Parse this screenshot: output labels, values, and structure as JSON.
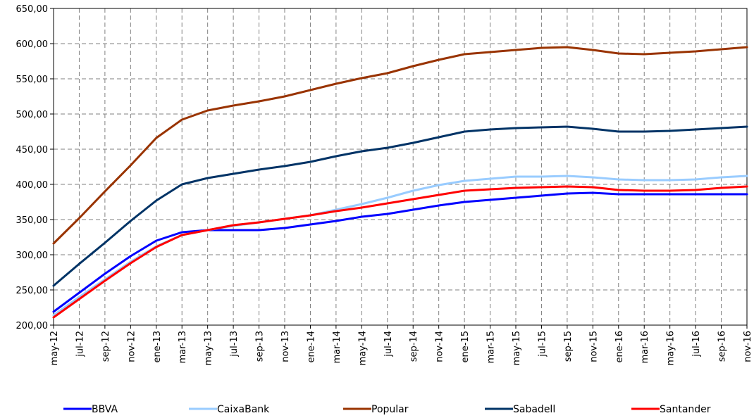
{
  "chart_data": {
    "type": "line",
    "title": "",
    "xlabel": "",
    "ylabel": "",
    "ylim": [
      200,
      650
    ],
    "yticks": [
      "200,00",
      "250,00",
      "300,00",
      "350,00",
      "400,00",
      "450,00",
      "500,00",
      "550,00",
      "600,00",
      "650,00"
    ],
    "ytick_values": [
      200,
      250,
      300,
      350,
      400,
      450,
      500,
      550,
      600,
      650
    ],
    "grid": true,
    "legend_position": "bottom",
    "categories": [
      "may-12",
      "jul-12",
      "sep-12",
      "nov-12",
      "ene-13",
      "mar-13",
      "may-13",
      "jul-13",
      "sep-13",
      "nov-13",
      "ene-14",
      "mar-14",
      "may-14",
      "jul-14",
      "sep-14",
      "nov-14",
      "ene-15",
      "mar-15",
      "may-15",
      "jul-15",
      "sep-15",
      "nov-15",
      "ene-16",
      "mar-16",
      "may-16",
      "jul-16",
      "sep-16",
      "nov-16"
    ],
    "series": [
      {
        "name": "BBVA",
        "color": "#0000ff",
        "values": [
          219,
          246,
          273,
          298,
          320,
          332,
          335,
          335,
          335,
          338,
          343,
          348,
          354,
          358,
          364,
          370,
          375,
          378,
          381,
          384,
          387,
          388,
          386,
          386,
          386,
          386,
          386,
          386
        ]
      },
      {
        "name": "CaixaBank",
        "color": "#99ccff",
        "values": [
          214,
          240,
          265,
          290,
          312,
          328,
          335,
          341,
          346,
          351,
          356,
          364,
          372,
          381,
          391,
          399,
          405,
          408,
          411,
          411,
          412,
          410,
          407,
          406,
          406,
          407,
          410,
          412
        ]
      },
      {
        "name": "Popular",
        "color": "#993300",
        "values": [
          316,
          352,
          390,
          427,
          466,
          492,
          505,
          512,
          518,
          525,
          534,
          543,
          551,
          558,
          568,
          577,
          585,
          588,
          591,
          594,
          595,
          591,
          586,
          585,
          587,
          589,
          592,
          595
        ]
      },
      {
        "name": "Sabadell",
        "color": "#003366",
        "values": [
          256,
          287,
          317,
          348,
          377,
          400,
          409,
          415,
          421,
          426,
          432,
          440,
          447,
          452,
          459,
          467,
          475,
          478,
          480,
          481,
          482,
          479,
          475,
          475,
          476,
          478,
          480,
          482
        ]
      },
      {
        "name": "Santander",
        "color": "#ff0000",
        "values": [
          211,
          237,
          263,
          288,
          311,
          328,
          335,
          342,
          346,
          351,
          356,
          362,
          367,
          373,
          379,
          385,
          391,
          393,
          395,
          396,
          397,
          396,
          392,
          391,
          391,
          392,
          395,
          397
        ]
      }
    ]
  }
}
